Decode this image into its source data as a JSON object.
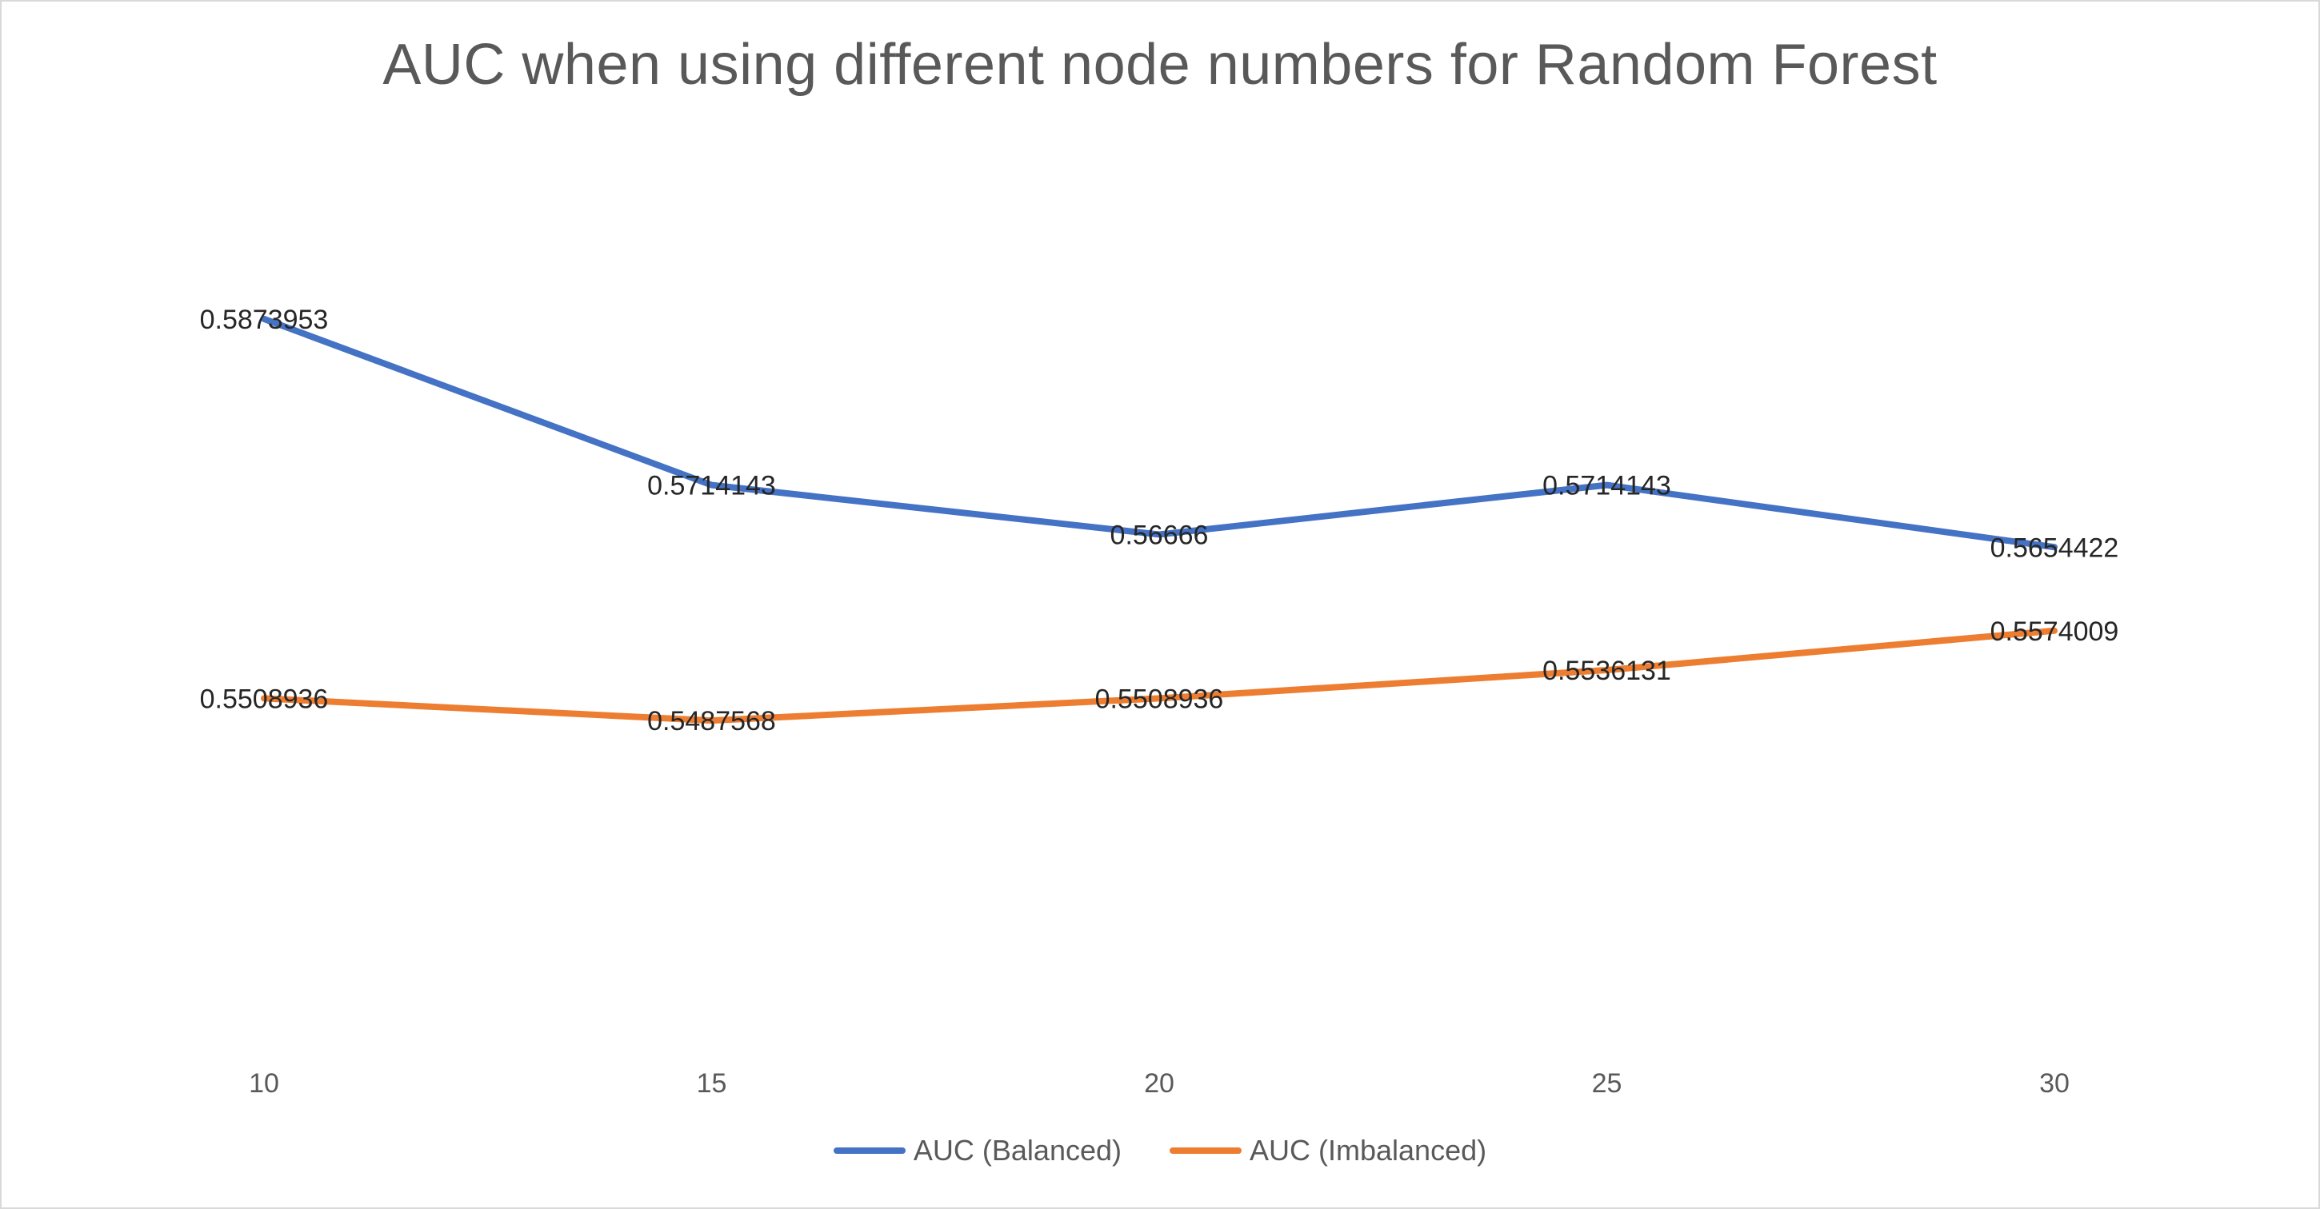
{
  "chart_data": {
    "type": "line",
    "title": "AUC when using different node numbers for Random Forest",
    "xlabel": "",
    "ylabel": "",
    "categories": [
      "10",
      "15",
      "20",
      "25",
      "30"
    ],
    "ylim": [
      0.52,
      0.6
    ],
    "grid": false,
    "legend": "bottom",
    "series": [
      {
        "name": "AUC (Balanced)",
        "color": "#4472c4",
        "values": [
          0.5873953,
          0.5714143,
          0.56666,
          0.5714143,
          0.5654422
        ],
        "labels": [
          "0.5873953",
          "0.5714143",
          "0.56666",
          "0.5714143",
          "0.5654422"
        ]
      },
      {
        "name": "AUC (Imbalanced)",
        "color": "#ed7d31",
        "values": [
          0.5508936,
          0.5487568,
          0.5508936,
          0.5536131,
          0.5574009
        ],
        "labels": [
          "0.5508936",
          "0.5487568",
          "0.5508936",
          "0.5536131",
          "0.5574009"
        ]
      }
    ]
  }
}
